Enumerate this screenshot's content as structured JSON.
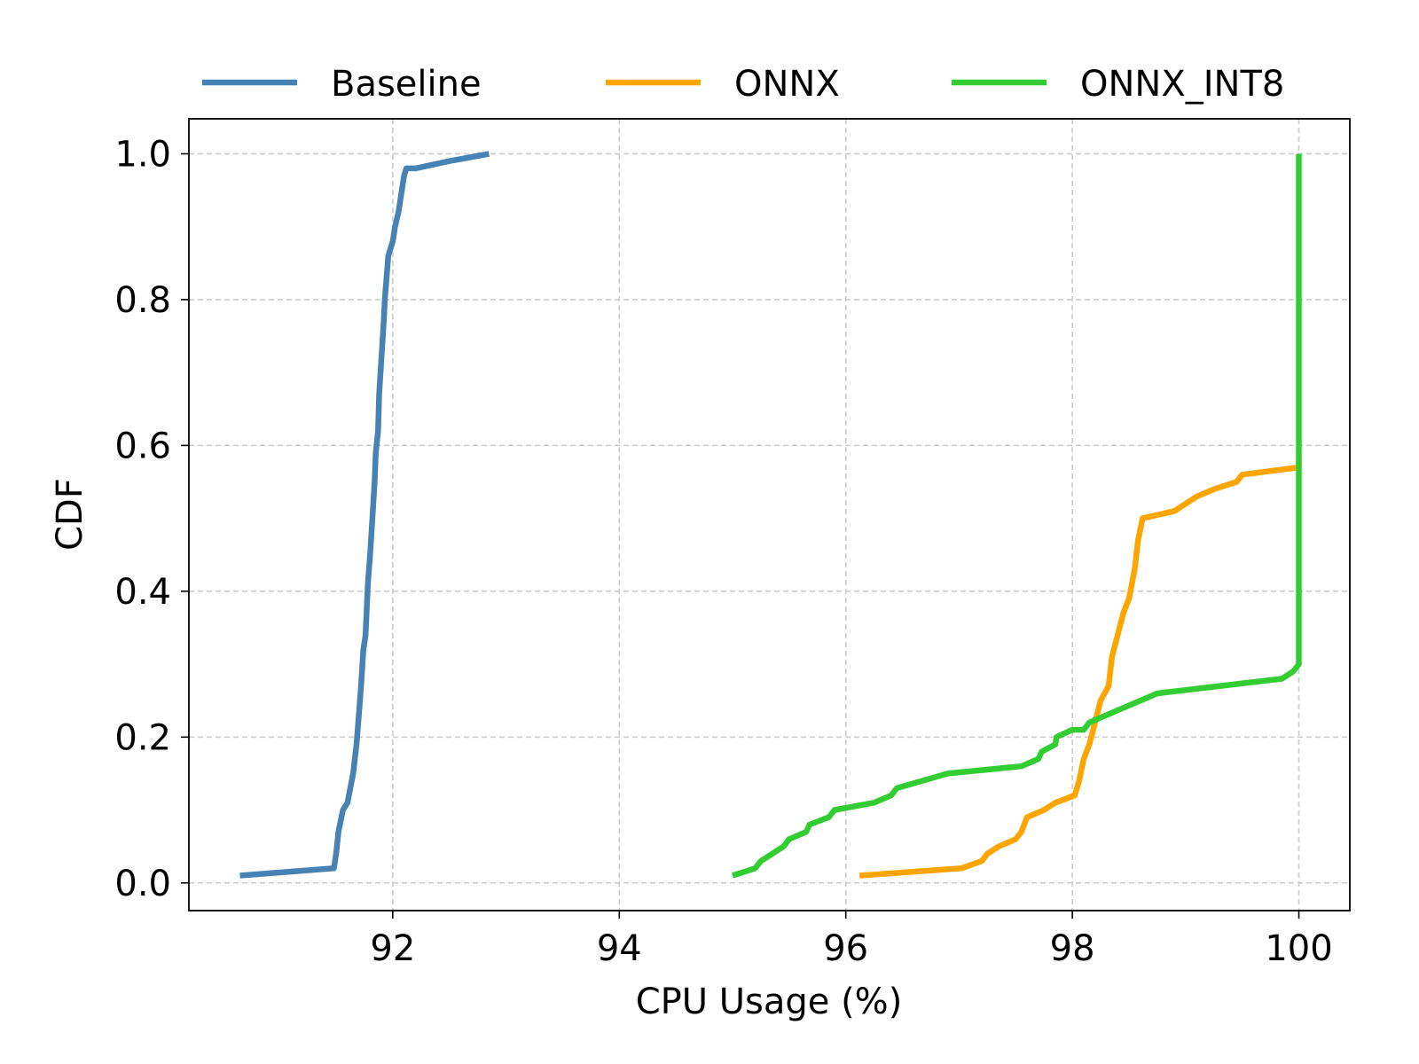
{
  "chart_data": {
    "type": "line",
    "title": "",
    "xlabel": "CPU Usage (%)",
    "ylabel": "CDF",
    "xlim": [
      90.2,
      100.45
    ],
    "ylim": [
      -0.038,
      1.048
    ],
    "xticks": [
      92,
      94,
      96,
      98,
      100
    ],
    "xtick_labels": [
      "92",
      "94",
      "96",
      "98",
      "100"
    ],
    "yticks": [
      0.0,
      0.2,
      0.4,
      0.6,
      0.8,
      1.0
    ],
    "ytick_labels": [
      "0.0",
      "0.2",
      "0.4",
      "0.6",
      "0.8",
      "1.0"
    ],
    "grid": true,
    "legend_position": "top-outside",
    "series": [
      {
        "name": "Baseline",
        "color": "#4682b4",
        "x": [
          90.65,
          91.48,
          91.5,
          91.52,
          91.56,
          91.6,
          91.65,
          91.68,
          91.7,
          91.72,
          91.74,
          91.76,
          91.78,
          91.8,
          91.82,
          91.84,
          91.85,
          91.87,
          91.88,
          91.9,
          91.92,
          91.93,
          91.95,
          91.96,
          91.98,
          92.0,
          92.02,
          92.05,
          92.08,
          92.1,
          92.12,
          92.14,
          92.16,
          92.2,
          92.5,
          92.85
        ],
        "y": [
          0.01,
          0.02,
          0.04,
          0.07,
          0.1,
          0.11,
          0.15,
          0.19,
          0.23,
          0.27,
          0.32,
          0.34,
          0.41,
          0.45,
          0.5,
          0.55,
          0.59,
          0.62,
          0.67,
          0.72,
          0.77,
          0.8,
          0.84,
          0.86,
          0.87,
          0.88,
          0.9,
          0.92,
          0.95,
          0.97,
          0.98,
          0.98,
          0.98,
          0.98,
          0.99,
          1.0
        ],
        "labels": [
          "Baseline"
        ]
      },
      {
        "name": "ONNX",
        "color": "#ffa500",
        "x": [
          96.12,
          97.02,
          97.2,
          97.25,
          97.35,
          97.5,
          97.55,
          97.6,
          97.75,
          97.85,
          98.02,
          98.06,
          98.1,
          98.15,
          98.2,
          98.25,
          98.32,
          98.35,
          98.4,
          98.45,
          98.5,
          98.55,
          98.58,
          98.62,
          98.9,
          99.1,
          99.25,
          99.45,
          99.5,
          100.0,
          100.0
        ],
        "y": [
          0.01,
          0.02,
          0.03,
          0.04,
          0.05,
          0.06,
          0.07,
          0.09,
          0.1,
          0.11,
          0.12,
          0.14,
          0.17,
          0.19,
          0.22,
          0.25,
          0.27,
          0.31,
          0.34,
          0.37,
          0.39,
          0.43,
          0.47,
          0.5,
          0.51,
          0.53,
          0.54,
          0.55,
          0.56,
          0.57,
          0.58
        ],
        "labels": [
          "ONNX"
        ]
      },
      {
        "name": "ONNX_INT8",
        "color": "#32cd32",
        "x": [
          95.0,
          95.2,
          95.25,
          95.45,
          95.5,
          95.65,
          95.68,
          95.85,
          95.9,
          96.25,
          96.4,
          96.45,
          96.9,
          97.55,
          97.7,
          97.73,
          97.85,
          97.86,
          98.0,
          98.05,
          98.1,
          98.15,
          98.3,
          98.6,
          98.75,
          99.85,
          99.95,
          100.0,
          100.0
        ],
        "y": [
          0.01,
          0.02,
          0.03,
          0.05,
          0.06,
          0.07,
          0.08,
          0.09,
          0.1,
          0.11,
          0.12,
          0.13,
          0.15,
          0.16,
          0.17,
          0.18,
          0.19,
          0.2,
          0.21,
          0.21,
          0.21,
          0.22,
          0.23,
          0.25,
          0.26,
          0.28,
          0.29,
          0.3,
          1.0
        ],
        "labels": [
          "ONNX_INT8"
        ]
      }
    ]
  }
}
